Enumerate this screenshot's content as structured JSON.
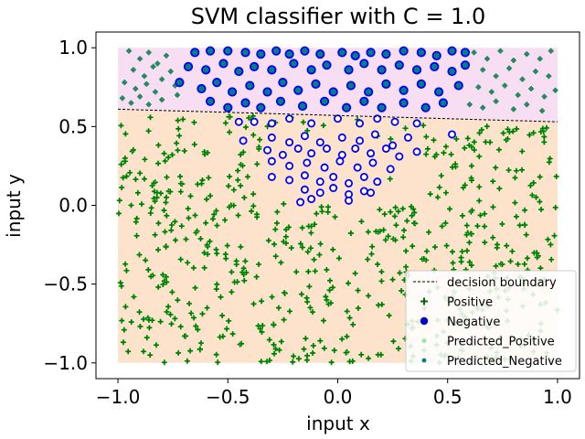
{
  "chart_data": {
    "type": "scatter",
    "title": "SVM classifier with C = 1.0",
    "xlabel": "input x",
    "ylabel": "input y",
    "xlim": [
      -1.1,
      1.1
    ],
    "ylim": [
      -1.1,
      1.1
    ],
    "xticks": [
      -1.0,
      -0.5,
      0.0,
      0.5,
      1.0
    ],
    "yticks": [
      -1.0,
      -0.5,
      0.0,
      0.5,
      1.0
    ],
    "xtick_labels": [
      "−1.0",
      "−0.5",
      "0.0",
      "0.5",
      "1.0"
    ],
    "ytick_labels": [
      "−1.0",
      "−0.5",
      "0.0",
      "0.5",
      "1.0"
    ],
    "grid": false,
    "legend_position": "lower-right",
    "decision_boundary": {
      "x": [
        -1.0,
        1.0
      ],
      "y": [
        0.61,
        0.53
      ]
    },
    "regions": [
      {
        "label": "upper",
        "color": "#f7def2"
      },
      {
        "label": "lower",
        "color": "#fde3cc"
      }
    ],
    "legend": [
      {
        "label": "decision boundary",
        "marker": "dashed-line",
        "color": "#000000"
      },
      {
        "label": "Positive",
        "marker": "plus",
        "color": "#006400"
      },
      {
        "label": "Negative",
        "marker": "circle",
        "color": "#0000cc"
      },
      {
        "label": "Predicted_Positive",
        "marker": "small-dot",
        "color": "#90ee90"
      },
      {
        "label": "Predicted_Negative",
        "marker": "small-dot",
        "color": "#008080"
      }
    ],
    "series": [
      {
        "name": "Negative",
        "color": "#0000ff",
        "points": [
          [
            -0.65,
            0.97
          ],
          [
            -0.58,
            0.98
          ],
          [
            -0.5,
            0.98
          ],
          [
            -0.42,
            0.97
          ],
          [
            -0.35,
            0.96
          ],
          [
            -0.28,
            0.98
          ],
          [
            -0.22,
            0.96
          ],
          [
            -0.15,
            0.98
          ],
          [
            -0.08,
            0.96
          ],
          [
            0.02,
            0.97
          ],
          [
            0.08,
            0.95
          ],
          [
            0.15,
            0.97
          ],
          [
            0.22,
            0.96
          ],
          [
            0.3,
            0.98
          ],
          [
            0.38,
            0.97
          ],
          [
            0.45,
            0.95
          ],
          [
            0.52,
            0.98
          ],
          [
            0.58,
            0.97
          ],
          [
            -0.68,
            0.88
          ],
          [
            -0.6,
            0.86
          ],
          [
            -0.52,
            0.9
          ],
          [
            -0.45,
            0.85
          ],
          [
            -0.38,
            0.88
          ],
          [
            -0.3,
            0.86
          ],
          [
            -0.2,
            0.9
          ],
          [
            -0.12,
            0.86
          ],
          [
            -0.05,
            0.89
          ],
          [
            0.05,
            0.86
          ],
          [
            0.12,
            0.9
          ],
          [
            0.2,
            0.86
          ],
          [
            0.28,
            0.89
          ],
          [
            0.36,
            0.86
          ],
          [
            0.44,
            0.88
          ],
          [
            0.52,
            0.85
          ],
          [
            0.58,
            0.89
          ],
          [
            -0.72,
            0.78
          ],
          [
            -0.62,
            0.74
          ],
          [
            -0.55,
            0.78
          ],
          [
            -0.48,
            0.72
          ],
          [
            -0.4,
            0.76
          ],
          [
            -0.32,
            0.72
          ],
          [
            -0.25,
            0.78
          ],
          [
            -0.18,
            0.73
          ],
          [
            -0.1,
            0.77
          ],
          [
            -0.02,
            0.72
          ],
          [
            0.06,
            0.76
          ],
          [
            0.14,
            0.72
          ],
          [
            0.22,
            0.77
          ],
          [
            0.3,
            0.73
          ],
          [
            0.38,
            0.77
          ],
          [
            0.46,
            0.72
          ],
          [
            0.55,
            0.76
          ],
          [
            -0.58,
            0.66
          ],
          [
            -0.5,
            0.62
          ],
          [
            -0.42,
            0.65
          ],
          [
            -0.35,
            0.62
          ],
          [
            -0.26,
            0.66
          ],
          [
            -0.16,
            0.63
          ],
          [
            -0.06,
            0.66
          ],
          [
            0.04,
            0.62
          ],
          [
            0.12,
            0.66
          ],
          [
            0.2,
            0.62
          ],
          [
            0.3,
            0.65
          ],
          [
            0.4,
            0.62
          ],
          [
            0.48,
            0.65
          ],
          [
            -0.45,
            0.53
          ],
          [
            -0.38,
            0.53
          ],
          [
            -0.3,
            0.52
          ],
          [
            -0.22,
            0.55
          ],
          [
            -0.12,
            0.52
          ],
          [
            0.0,
            0.55
          ],
          [
            0.1,
            0.52
          ],
          [
            0.18,
            0.55
          ],
          [
            0.26,
            0.53
          ],
          [
            0.36,
            0.52
          ],
          [
            0.52,
            0.45
          ],
          [
            -0.43,
            0.41
          ],
          [
            -0.3,
            0.43
          ],
          [
            -0.22,
            0.4
          ],
          [
            -0.15,
            0.44
          ],
          [
            -0.08,
            0.4
          ],
          [
            0.02,
            0.43
          ],
          [
            0.1,
            0.41
          ],
          [
            0.17,
            0.45
          ],
          [
            0.25,
            0.38
          ],
          [
            0.32,
            0.43
          ],
          [
            -0.32,
            0.35
          ],
          [
            -0.25,
            0.32
          ],
          [
            -0.18,
            0.36
          ],
          [
            -0.12,
            0.33
          ],
          [
            -0.05,
            0.36
          ],
          [
            0.02,
            0.32
          ],
          [
            0.08,
            0.36
          ],
          [
            0.15,
            0.33
          ],
          [
            0.22,
            0.36
          ],
          [
            0.28,
            0.31
          ],
          [
            0.36,
            0.34
          ],
          [
            -0.3,
            0.28
          ],
          [
            -0.22,
            0.25
          ],
          [
            -0.14,
            0.27
          ],
          [
            -0.06,
            0.24
          ],
          [
            0.01,
            0.28
          ],
          [
            0.09,
            0.24
          ],
          [
            0.16,
            0.27
          ],
          [
            0.24,
            0.23
          ],
          [
            -0.3,
            0.18
          ],
          [
            -0.22,
            0.16
          ],
          [
            -0.15,
            0.19
          ],
          [
            -0.08,
            0.15
          ],
          [
            -0.02,
            0.18
          ],
          [
            0.05,
            0.14
          ],
          [
            0.12,
            0.18
          ],
          [
            0.18,
            0.15
          ],
          [
            -0.15,
            0.1
          ],
          [
            -0.08,
            0.08
          ],
          [
            -0.02,
            0.11
          ],
          [
            0.05,
            0.07
          ],
          [
            0.12,
            0.09
          ],
          [
            0.15,
            0.08
          ],
          [
            -0.12,
            0.04
          ],
          [
            0.05,
            0.03
          ],
          [
            -0.17,
            0.02
          ]
        ]
      },
      {
        "name": "Predicted_Negative",
        "color": "#008080",
        "points": [
          [
            -0.95,
            0.98
          ],
          [
            -0.9,
            0.93
          ],
          [
            -0.86,
            0.97
          ],
          [
            -0.82,
            0.9
          ],
          [
            -0.78,
            0.95
          ],
          [
            -0.93,
            0.86
          ],
          [
            -0.88,
            0.82
          ],
          [
            -0.84,
            0.88
          ],
          [
            -0.8,
            0.8
          ],
          [
            -0.76,
            0.85
          ],
          [
            -0.97,
            0.78
          ],
          [
            -0.92,
            0.74
          ],
          [
            -0.87,
            0.77
          ],
          [
            -0.83,
            0.72
          ],
          [
            -0.74,
            0.76
          ],
          [
            -0.98,
            0.68
          ],
          [
            -0.94,
            0.65
          ],
          [
            -0.9,
            0.69
          ],
          [
            -0.86,
            0.64
          ],
          [
            -0.8,
            0.67
          ],
          [
            -0.73,
            0.7
          ],
          [
            0.62,
            0.97
          ],
          [
            0.68,
            0.93
          ],
          [
            0.74,
            0.98
          ],
          [
            0.8,
            0.92
          ],
          [
            0.86,
            0.96
          ],
          [
            0.92,
            0.93
          ],
          [
            0.97,
            0.98
          ],
          [
            0.66,
            0.86
          ],
          [
            0.72,
            0.82
          ],
          [
            0.78,
            0.87
          ],
          [
            0.84,
            0.8
          ],
          [
            0.9,
            0.85
          ],
          [
            0.96,
            0.82
          ],
          [
            0.64,
            0.75
          ],
          [
            0.7,
            0.72
          ],
          [
            0.76,
            0.76
          ],
          [
            0.82,
            0.7
          ],
          [
            0.88,
            0.74
          ],
          [
            0.94,
            0.69
          ],
          [
            0.99,
            0.73
          ],
          [
            0.6,
            0.64
          ],
          [
            0.66,
            0.62
          ],
          [
            0.72,
            0.66
          ],
          [
            0.8,
            0.61
          ],
          [
            0.86,
            0.64
          ],
          [
            0.93,
            0.6
          ]
        ]
      }
    ]
  }
}
